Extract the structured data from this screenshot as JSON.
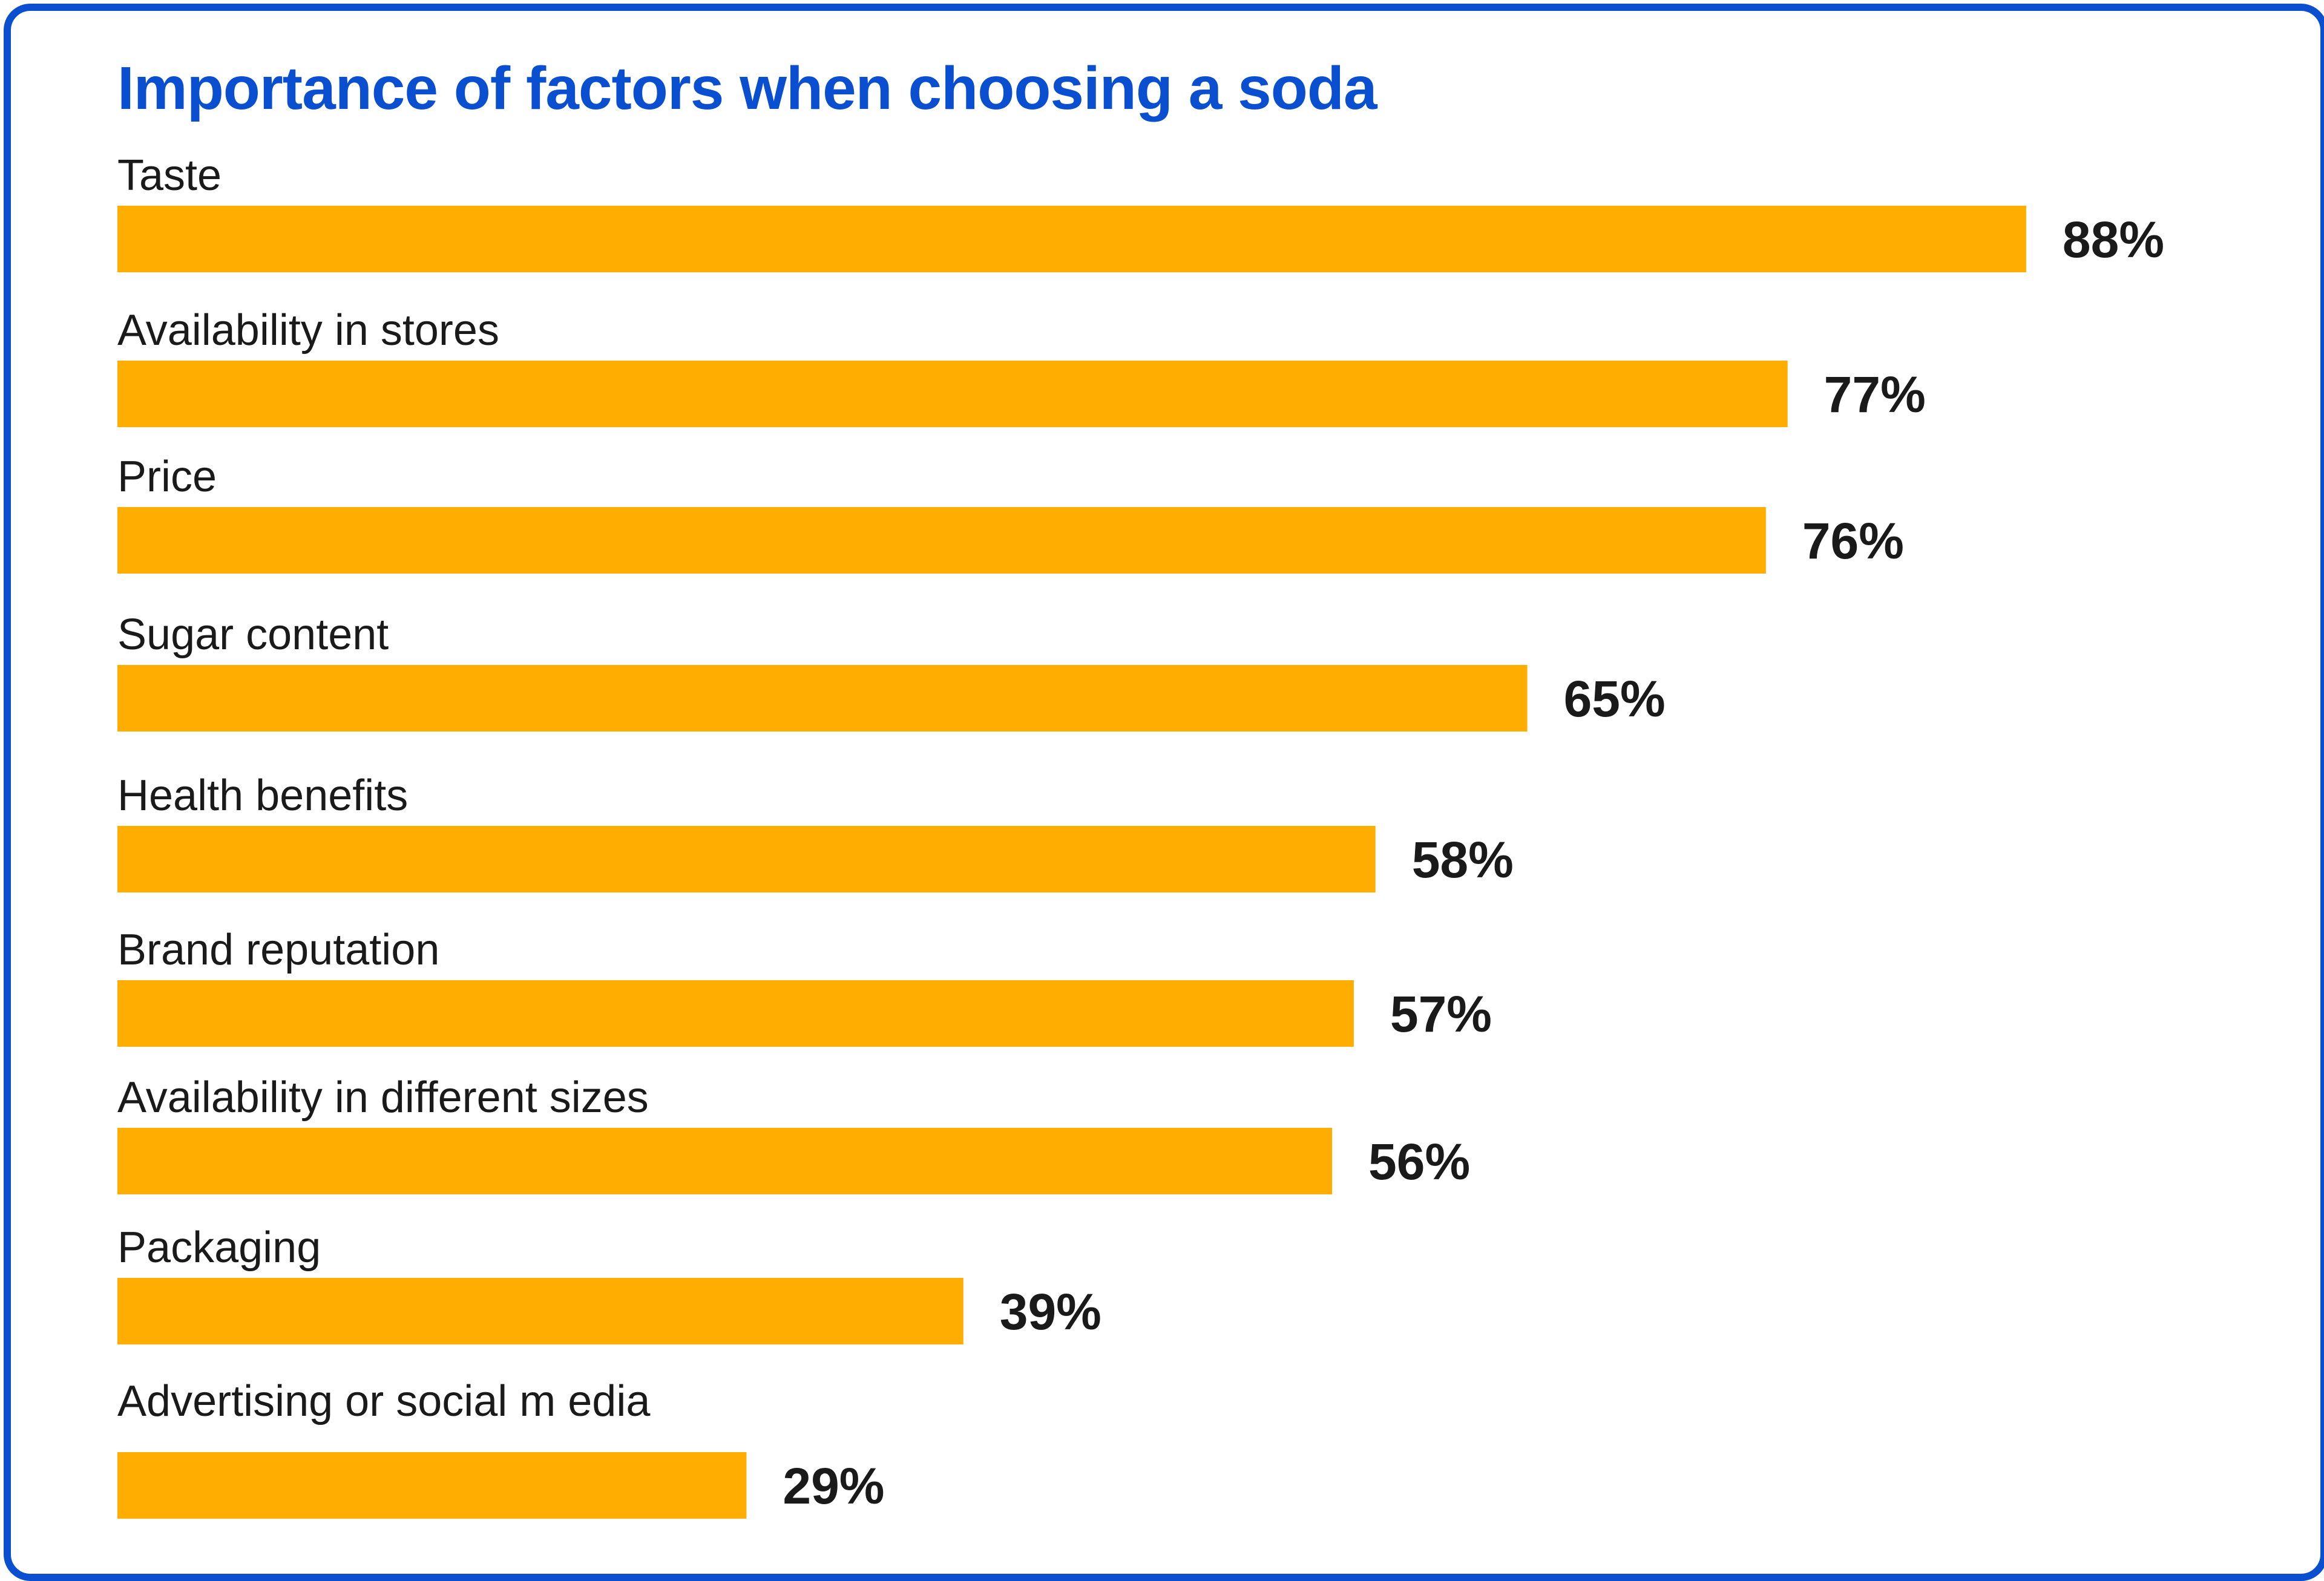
{
  "colors": {
    "title": "#0a4fd0",
    "border": "#0a4fd0",
    "bar": "#ffad00",
    "text": "#1a1a1a"
  },
  "chart_data": {
    "type": "bar",
    "orientation": "horizontal",
    "title": "Importance of factors when choosing a soda",
    "xlabel": "",
    "ylabel": "",
    "xlim": [
      0,
      100
    ],
    "grid": false,
    "categories": [
      "Taste",
      "Availability in stores",
      "Price",
      "Sugar content",
      "Health benefits",
      "Brand reputation",
      "Availability in different sizes",
      "Packaging",
      "Advertising or social m edia"
    ],
    "values": [
      88,
      77,
      76,
      65,
      58,
      57,
      56,
      39,
      29
    ],
    "value_labels": [
      "88%",
      "77%",
      "76%",
      "65%",
      "58%",
      "57%",
      "56%",
      "39%",
      "29%"
    ]
  }
}
